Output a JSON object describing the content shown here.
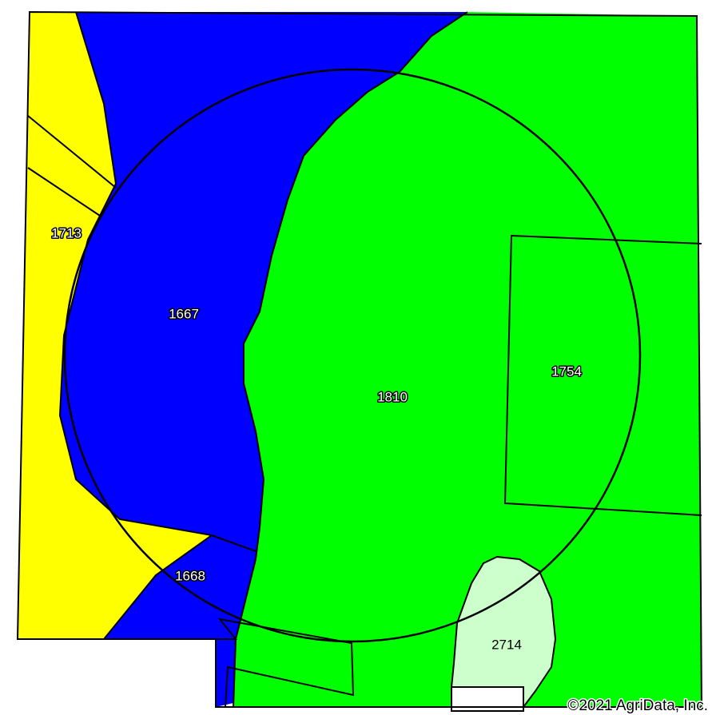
{
  "map": {
    "soil_units": [
      {
        "id": "u1713",
        "label": "1713",
        "color": "#ffff00"
      },
      {
        "id": "u1667",
        "label": "1667",
        "color": "#0000ff"
      },
      {
        "id": "u1668",
        "label": "1668",
        "color": "#0000ff"
      },
      {
        "id": "u1810",
        "label": "1810",
        "color": "#00ff00"
      },
      {
        "id": "u1754",
        "label": "1754",
        "color": "#00ff00"
      },
      {
        "id": "u2714",
        "label": "2714",
        "color": "#ccffcc"
      }
    ],
    "copyright": "©2021 AgriData, Inc."
  }
}
